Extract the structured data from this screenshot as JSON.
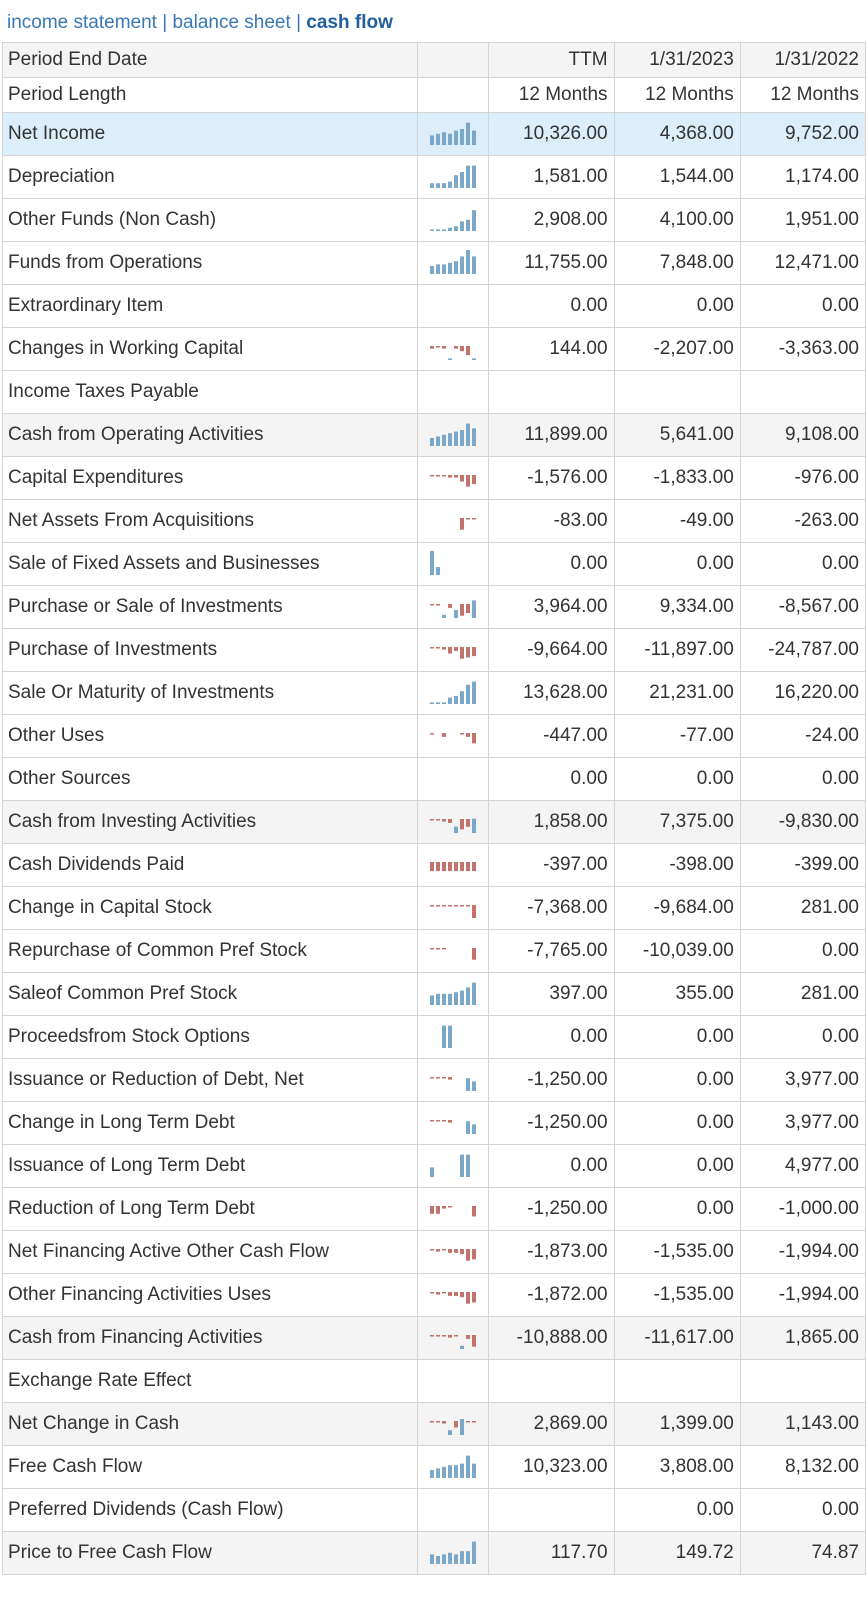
{
  "nav": {
    "income": "income statement",
    "balance": "balance sheet",
    "cash": "cash flow",
    "sep": " | "
  },
  "colors": {
    "pos": "#7ba7c8",
    "neg": "#c2736c",
    "link": "#3a78b5",
    "selected_row": "#ddeefb",
    "total_row": "#f4f4f4"
  },
  "header": [
    {
      "label": "Period End Date",
      "cols": [
        "TTM",
        "1/31/2023",
        "1/31/2022"
      ]
    },
    {
      "label": "Period Length",
      "cols": [
        "12 Months",
        "12 Months",
        "12 Months"
      ]
    }
  ],
  "rows": [
    {
      "label": "Net Income",
      "style": "sel",
      "spark": [
        6,
        7,
        8,
        7,
        9,
        10,
        14,
        9
      ],
      "values": [
        "10,326.00",
        "4,368.00",
        "9,752.00"
      ]
    },
    {
      "label": "Depreciation",
      "style": "",
      "spark": [
        3,
        3,
        3,
        4,
        8,
        10,
        14,
        14
      ],
      "values": [
        "1,581.00",
        "1,544.00",
        "1,174.00"
      ]
    },
    {
      "label": "Other Funds (Non Cash)",
      "style": "",
      "spark": [
        1,
        1,
        1,
        2,
        3,
        6,
        7,
        13
      ],
      "values": [
        "2,908.00",
        "4,100.00",
        "1,951.00"
      ]
    },
    {
      "label": "Funds from Operations",
      "style": "",
      "spark": [
        5,
        6,
        6,
        7,
        8,
        11,
        15,
        11
      ],
      "values": [
        "11,755.00",
        "7,848.00",
        "12,471.00"
      ]
    },
    {
      "label": "Extraordinary Item",
      "style": "",
      "spark": [],
      "values": [
        "0.00",
        "0.00",
        "0.00"
      ]
    },
    {
      "label": "Changes in Working Capital",
      "style": "",
      "spark": [
        -2,
        -1,
        -2,
        1,
        -2,
        -4,
        -7,
        1
      ],
      "values": [
        "144.00",
        "-2,207.00",
        "-3,363.00"
      ]
    },
    {
      "label": "Income Taxes Payable",
      "style": "",
      "spark": [],
      "values": [
        "",
        "",
        ""
      ]
    },
    {
      "label": "Cash from Operating Activities",
      "style": "total",
      "spark": [
        5,
        6,
        7,
        8,
        9,
        10,
        14,
        11
      ],
      "values": [
        "11,899.00",
        "5,641.00",
        "9,108.00"
      ]
    },
    {
      "label": "Capital Expenditures",
      "style": "",
      "spark": [
        -1,
        -1,
        -1,
        -2,
        -2,
        -5,
        -9,
        -7
      ],
      "values": [
        "-1,576.00",
        "-1,833.00",
        "-976.00"
      ]
    },
    {
      "label": "Net Assets From Acquisitions",
      "style": "",
      "spark": [
        0,
        0,
        0,
        0,
        0,
        -9,
        -1,
        -1
      ],
      "values": [
        "-83.00",
        "-49.00",
        "-263.00"
      ]
    },
    {
      "label": "Sale of Fixed Assets and Businesses",
      "style": "",
      "spark": [
        15,
        5,
        0,
        0,
        0,
        0,
        0,
        0
      ],
      "values": [
        "0.00",
        "0.00",
        "0.00"
      ]
    },
    {
      "label": "Purchase or Sale of Investments",
      "style": "",
      "spark": [
        -1,
        -1,
        2,
        -3,
        5,
        -9,
        -7,
        11
      ],
      "values": [
        "3,964.00",
        "9,334.00",
        "-8,567.00"
      ]
    },
    {
      "label": "Purchase of Investments",
      "style": "",
      "spark": [
        -1,
        -1,
        -2,
        -5,
        -3,
        -9,
        -8,
        -7
      ],
      "values": [
        "-9,664.00",
        "-11,897.00",
        "-24,787.00"
      ]
    },
    {
      "label": "Sale Or Maturity of Investments",
      "style": "",
      "spark": [
        1,
        1,
        1,
        4,
        5,
        8,
        12,
        14
      ],
      "values": [
        "13,628.00",
        "21,231.00",
        "16,220.00"
      ]
    },
    {
      "label": "Other Uses",
      "style": "",
      "spark": [
        -1,
        0,
        -3,
        0,
        0,
        -1,
        -3,
        -8
      ],
      "values": [
        "-447.00",
        "-77.00",
        "-24.00"
      ]
    },
    {
      "label": "Other Sources",
      "style": "",
      "spark": [],
      "values": [
        "0.00",
        "0.00",
        "0.00"
      ]
    },
    {
      "label": "Cash from Investing Activities",
      "style": "total",
      "spark": [
        -1,
        -1,
        -2,
        -3,
        4,
        -8,
        -6,
        9
      ],
      "values": [
        "1,858.00",
        "7,375.00",
        "-9,830.00"
      ]
    },
    {
      "label": "Cash Dividends Paid",
      "style": "",
      "spark": [
        -7,
        -7,
        -7,
        -7,
        -7,
        -7,
        -7,
        -7
      ],
      "values": [
        "-397.00",
        "-398.00",
        "-399.00"
      ]
    },
    {
      "label": "Change in Capital Stock",
      "style": "",
      "spark": [
        -1,
        -1,
        -1,
        -1,
        -1,
        -1,
        -1,
        -10
      ],
      "values": [
        "-7,368.00",
        "-9,684.00",
        "281.00"
      ]
    },
    {
      "label": "Repurchase of Common Pref Stock",
      "style": "",
      "spark": [
        -1,
        -1,
        -1,
        0,
        0,
        0,
        0,
        -9
      ],
      "values": [
        "-7,765.00",
        "-10,039.00",
        "0.00"
      ]
    },
    {
      "label": "Saleof Common Pref Stock",
      "style": "",
      "spark": [
        6,
        7,
        7,
        7,
        8,
        9,
        11,
        14
      ],
      "values": [
        "397.00",
        "355.00",
        "281.00"
      ]
    },
    {
      "label": "Proceedsfrom Stock Options",
      "style": "",
      "spark": [
        0,
        0,
        14,
        14,
        0,
        0,
        0,
        0
      ],
      "values": [
        "0.00",
        "0.00",
        "0.00"
      ]
    },
    {
      "label": "Issuance or Reduction of Debt, Net",
      "style": "",
      "spark": [
        -1,
        -1,
        -1,
        -2,
        0,
        0,
        8,
        6
      ],
      "values": [
        "-1,250.00",
        "0.00",
        "3,977.00"
      ]
    },
    {
      "label": "Change in Long Term Debt",
      "style": "",
      "spark": [
        -1,
        -1,
        -1,
        -2,
        0,
        0,
        8,
        6
      ],
      "values": [
        "-1,250.00",
        "0.00",
        "3,977.00"
      ]
    },
    {
      "label": "Issuance of Long Term Debt",
      "style": "",
      "spark": [
        6,
        0,
        0,
        0,
        0,
        14,
        14,
        0
      ],
      "values": [
        "0.00",
        "0.00",
        "4,977.00"
      ]
    },
    {
      "label": "Reduction of Long Term Debt",
      "style": "",
      "spark": [
        -6,
        -6,
        -2,
        -1,
        0,
        0,
        0,
        -8
      ],
      "values": [
        "-1,250.00",
        "0.00",
        "-1,000.00"
      ]
    },
    {
      "label": "Net Financing Active Other Cash Flow",
      "style": "",
      "spark": [
        -1,
        -2,
        -1,
        -3,
        -3,
        -4,
        -9,
        -8
      ],
      "values": [
        "-1,873.00",
        "-1,535.00",
        "-1,994.00"
      ]
    },
    {
      "label": "Other Financing Activities Uses",
      "style": "",
      "spark": [
        -1,
        -2,
        -1,
        -3,
        -3,
        -4,
        -9,
        -8
      ],
      "values": [
        "-1,872.00",
        "-1,535.00",
        "-1,994.00"
      ]
    },
    {
      "label": "Cash from Financing Activities",
      "style": "total",
      "spark": [
        -1,
        -1,
        -1,
        -2,
        -1,
        2,
        -3,
        -9
      ],
      "values": [
        "-10,888.00",
        "-11,617.00",
        "1,865.00"
      ]
    },
    {
      "label": "Exchange Rate Effect",
      "style": "",
      "spark": [],
      "values": [
        "",
        "",
        ""
      ]
    },
    {
      "label": "Net Change in Cash",
      "style": "total",
      "spark": [
        -1,
        -1,
        -2,
        3,
        -5,
        10,
        -1,
        -1
      ],
      "values": [
        "2,869.00",
        "1,399.00",
        "1,143.00"
      ]
    },
    {
      "label": "Free Cash Flow",
      "style": "",
      "spark": [
        5,
        6,
        7,
        8,
        8,
        9,
        14,
        9
      ],
      "values": [
        "10,323.00",
        "3,808.00",
        "8,132.00"
      ]
    },
    {
      "label": "Preferred Dividends (Cash Flow)",
      "style": "",
      "spark": [],
      "values": [
        "",
        "0.00",
        "0.00"
      ]
    },
    {
      "label": "Price to Free Cash Flow",
      "style": "total",
      "spark": [
        6,
        5,
        6,
        7,
        6,
        8,
        8,
        14
      ],
      "values": [
        "117.70",
        "149.72",
        "74.87"
      ]
    }
  ]
}
